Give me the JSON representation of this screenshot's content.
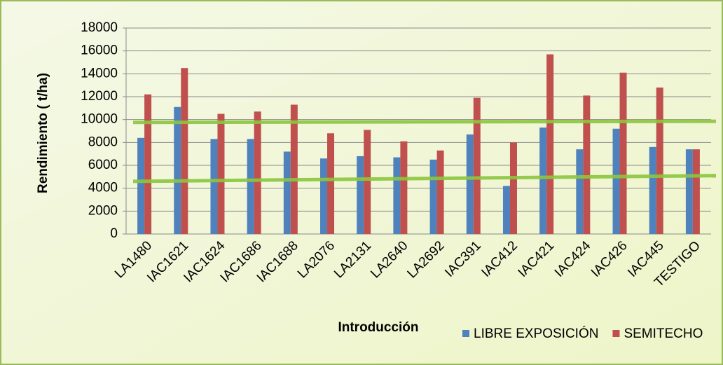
{
  "chart_data": {
    "type": "bar",
    "y_label": "Rendimiento ( t/ha)",
    "x_label": "Introducción",
    "categories": [
      "LA1480",
      "IAC1621",
      "IAC1624",
      "IAC1686",
      "IAC1688",
      "LA2076",
      "LA2131",
      "LA2640",
      "LA2692",
      "IAC391",
      "IAC412",
      "IAC421",
      "IAC424",
      "IAC426",
      "IAC445",
      "TESTIGO"
    ],
    "series": [
      {
        "name": "LIBRE EXPOSICIÓN",
        "color": "#4f81bd",
        "values": [
          8400,
          11100,
          8300,
          8300,
          7200,
          6600,
          6800,
          6700,
          6500,
          8700,
          4200,
          9300,
          7400,
          9200,
          7600,
          7400
        ]
      },
      {
        "name": "SEMITECHO",
        "color": "#c0504d",
        "values": [
          12200,
          14500,
          10500,
          10700,
          11300,
          8800,
          9100,
          8100,
          7300,
          11900,
          8000,
          15700,
          12100,
          14100,
          12800,
          7400
        ]
      }
    ],
    "reference_lines": [
      {
        "color": "#8cc63f",
        "values": [
          9750,
          9850
        ]
      },
      {
        "color": "#8cc63f",
        "values": [
          4600,
          5100
        ]
      }
    ],
    "ylim": [
      0,
      18000
    ],
    "yticks": [
      0,
      2000,
      4000,
      6000,
      8000,
      10000,
      12000,
      14000,
      16000,
      18000
    ],
    "grid": true
  }
}
